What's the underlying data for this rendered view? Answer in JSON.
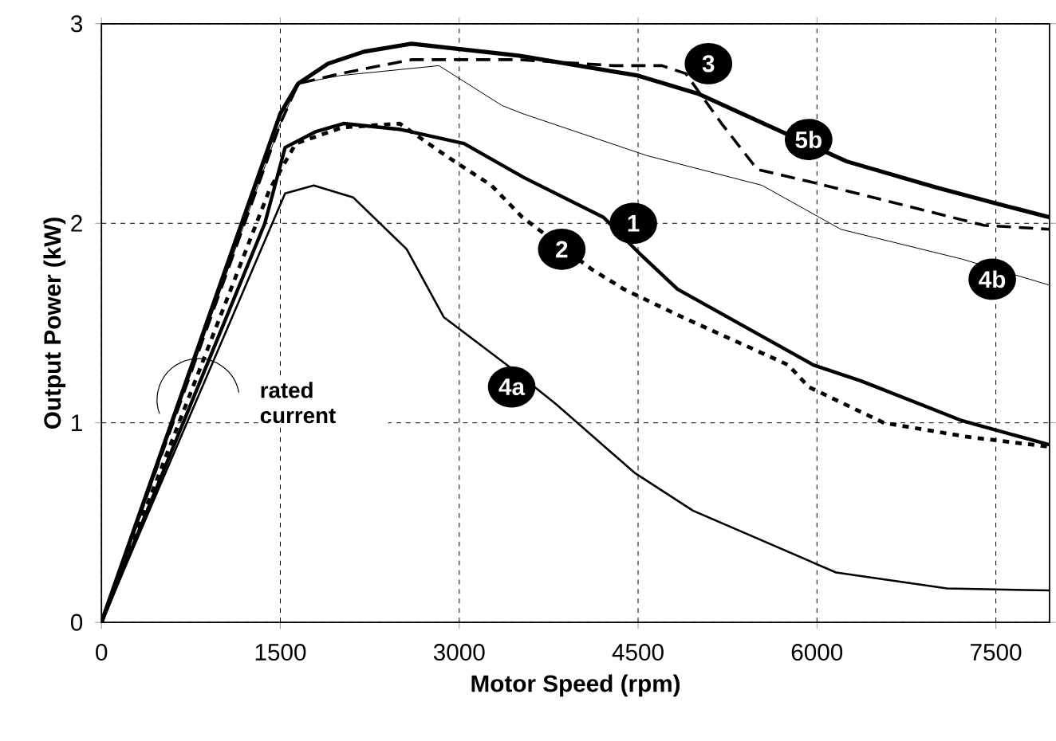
{
  "chart_data": {
    "type": "line",
    "xlabel": "Motor Speed (rpm)",
    "ylabel": "Output Power (kW)",
    "xlim": [
      0,
      7950
    ],
    "ylim": [
      0,
      3
    ],
    "xticks": [
      0,
      1500,
      3000,
      4500,
      6000,
      7500
    ],
    "yticks": [
      0,
      1,
      2,
      3
    ],
    "grid": true,
    "series": [
      {
        "color": "#000000",
        "line_style": "solid",
        "x": [
          0,
          1500,
          1650,
          1900,
          2200,
          2600,
          3500,
          4500,
          5000,
          6250,
          7000,
          7500,
          7950
        ],
        "values": [
          0,
          2.55,
          2.7,
          2.8,
          2.86,
          2.9,
          2.84,
          2.74,
          2.65,
          2.31,
          2.18,
          2.1,
          2.03
        ]
      },
      {
        "color": "#000000",
        "line_style": "dashed",
        "x": [
          0,
          1500,
          1650,
          2000,
          2600,
          3500,
          4300,
          4700,
          4900,
          5200,
          5500,
          6000,
          7400,
          7950
        ],
        "values": [
          0,
          2.5,
          2.7,
          2.75,
          2.82,
          2.82,
          2.79,
          2.79,
          2.75,
          2.5,
          2.27,
          2.2,
          1.99,
          1.97
        ]
      },
      {
        "color": "#000000",
        "line_style": "solid",
        "x": [
          0,
          1500,
          1650,
          2000,
          2830,
          3360,
          3530,
          4570,
          5540,
          6200,
          7220,
          7950
        ],
        "values": [
          0,
          2.5,
          2.7,
          2.74,
          2.79,
          2.59,
          2.55,
          2.34,
          2.19,
          1.97,
          1.82,
          1.69
        ]
      },
      {
        "color": "#000000",
        "line_style": "solid",
        "x": [
          0,
          1370,
          1540,
          1800,
          2030,
          2510,
          3040,
          3540,
          4210,
          4510,
          4830,
          5970,
          6370,
          7220,
          7950
        ],
        "values": [
          0,
          2.0,
          2.38,
          2.46,
          2.5,
          2.47,
          2.4,
          2.23,
          2.03,
          1.85,
          1.67,
          1.29,
          1.21,
          1.01,
          0.89
        ]
      },
      {
        "color": "#000000",
        "line_style": "dotted",
        "x": [
          0,
          1410,
          1630,
          2020,
          2500,
          2910,
          3270,
          3530,
          4110,
          4380,
          4870,
          5760,
          5930,
          6560,
          7260,
          7950
        ],
        "values": [
          0,
          2.17,
          2.4,
          2.48,
          2.5,
          2.33,
          2.19,
          2.03,
          1.77,
          1.67,
          1.53,
          1.29,
          1.18,
          1.0,
          0.93,
          0.88
        ]
      },
      {
        "color": "#000000",
        "line_style": "solid",
        "x": [
          0,
          1540,
          1780,
          2110,
          2560,
          2870,
          3400,
          3800,
          4470,
          4960,
          6160,
          7090,
          7950
        ],
        "values": [
          0,
          2.15,
          2.19,
          2.13,
          1.87,
          1.53,
          1.29,
          1.1,
          0.75,
          0.56,
          0.25,
          0.17,
          0.16
        ]
      }
    ],
    "annotations": [
      {
        "text": "1",
        "x": 4460,
        "y": 2.0
      },
      {
        "text": "2",
        "x": 3860,
        "y": 1.87
      },
      {
        "text": "3",
        "x": 5090,
        "y": 2.8
      },
      {
        "text": "5b",
        "x": 5930,
        "y": 2.42
      },
      {
        "text": "4b",
        "x": 7470,
        "y": 1.72
      },
      {
        "text": "4a",
        "x": 3440,
        "y": 1.18
      },
      "rated current"
    ]
  }
}
